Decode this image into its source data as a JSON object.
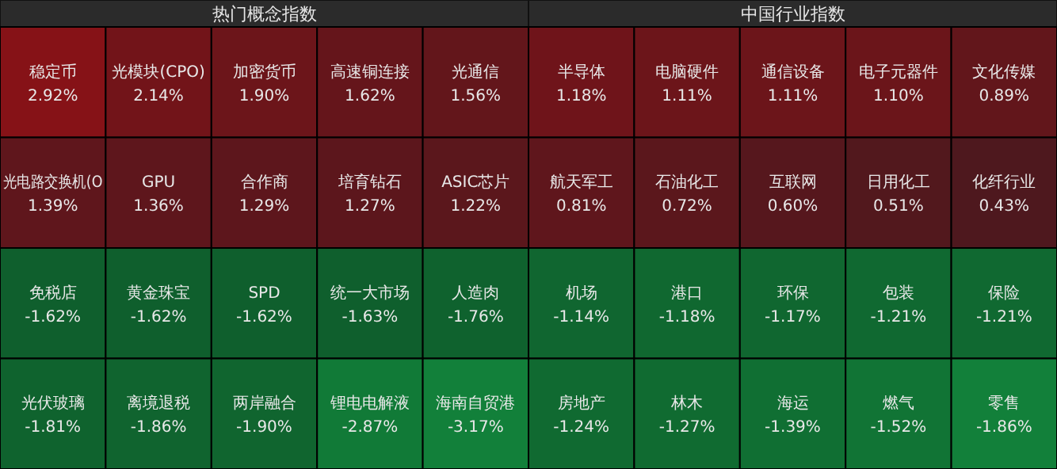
{
  "chart_data": [
    {
      "type": "other",
      "title": "热门概念指数",
      "categories": [
        "稳定币",
        "光模块(CPO)",
        "加密货币",
        "高速铜连接",
        "光通信",
        "光电路交换机(O",
        "GPU",
        "合作商",
        "培育钻石",
        "ASIC芯片",
        "免税店",
        "黄金珠宝",
        "SPD",
        "统一大市场",
        "人造肉",
        "光伏玻璃",
        "离境退税",
        "两岸融合",
        "锂电电解液",
        "海南自贸港"
      ],
      "values": [
        2.92,
        2.14,
        1.9,
        1.62,
        1.56,
        1.39,
        1.36,
        1.29,
        1.27,
        1.22,
        -1.62,
        -1.62,
        -1.62,
        -1.63,
        -1.76,
        -1.81,
        -1.86,
        -1.9,
        -2.87,
        -3.17
      ],
      "value_labels": [
        "2.92%",
        "2.14%",
        "1.90%",
        "1.62%",
        "1.56%",
        "1.39%",
        "1.36%",
        "1.29%",
        "1.27%",
        "1.22%",
        "-1.62%",
        "-1.62%",
        "-1.62%",
        "-1.63%",
        "-1.76%",
        "-1.81%",
        "-1.86%",
        "-1.90%",
        "-2.87%",
        "-3.17%"
      ]
    },
    {
      "type": "other",
      "title": "中国行业指数",
      "categories": [
        "半导体",
        "电脑硬件",
        "通信设备",
        "电子元器件",
        "文化传媒",
        "航天军工",
        "石油化工",
        "互联网",
        "日用化工",
        "化纤行业",
        "机场",
        "港口",
        "环保",
        "包装",
        "保险",
        "房地产",
        "林木",
        "海运",
        "燃气",
        "零售"
      ],
      "values": [
        1.18,
        1.11,
        1.11,
        1.1,
        0.89,
        0.81,
        0.72,
        0.6,
        0.51,
        0.43,
        -1.14,
        -1.18,
        -1.17,
        -1.21,
        -1.21,
        -1.24,
        -1.27,
        -1.39,
        -1.52,
        -1.86
      ],
      "value_labels": [
        "1.18%",
        "1.11%",
        "1.11%",
        "1.10%",
        "0.89%",
        "0.81%",
        "0.72%",
        "0.60%",
        "0.51%",
        "0.43%",
        "-1.14%",
        "-1.18%",
        "-1.17%",
        "-1.21%",
        "-1.21%",
        "-1.24%",
        "-1.27%",
        "-1.39%",
        "-1.52%",
        "-1.86%"
      ]
    }
  ]
}
